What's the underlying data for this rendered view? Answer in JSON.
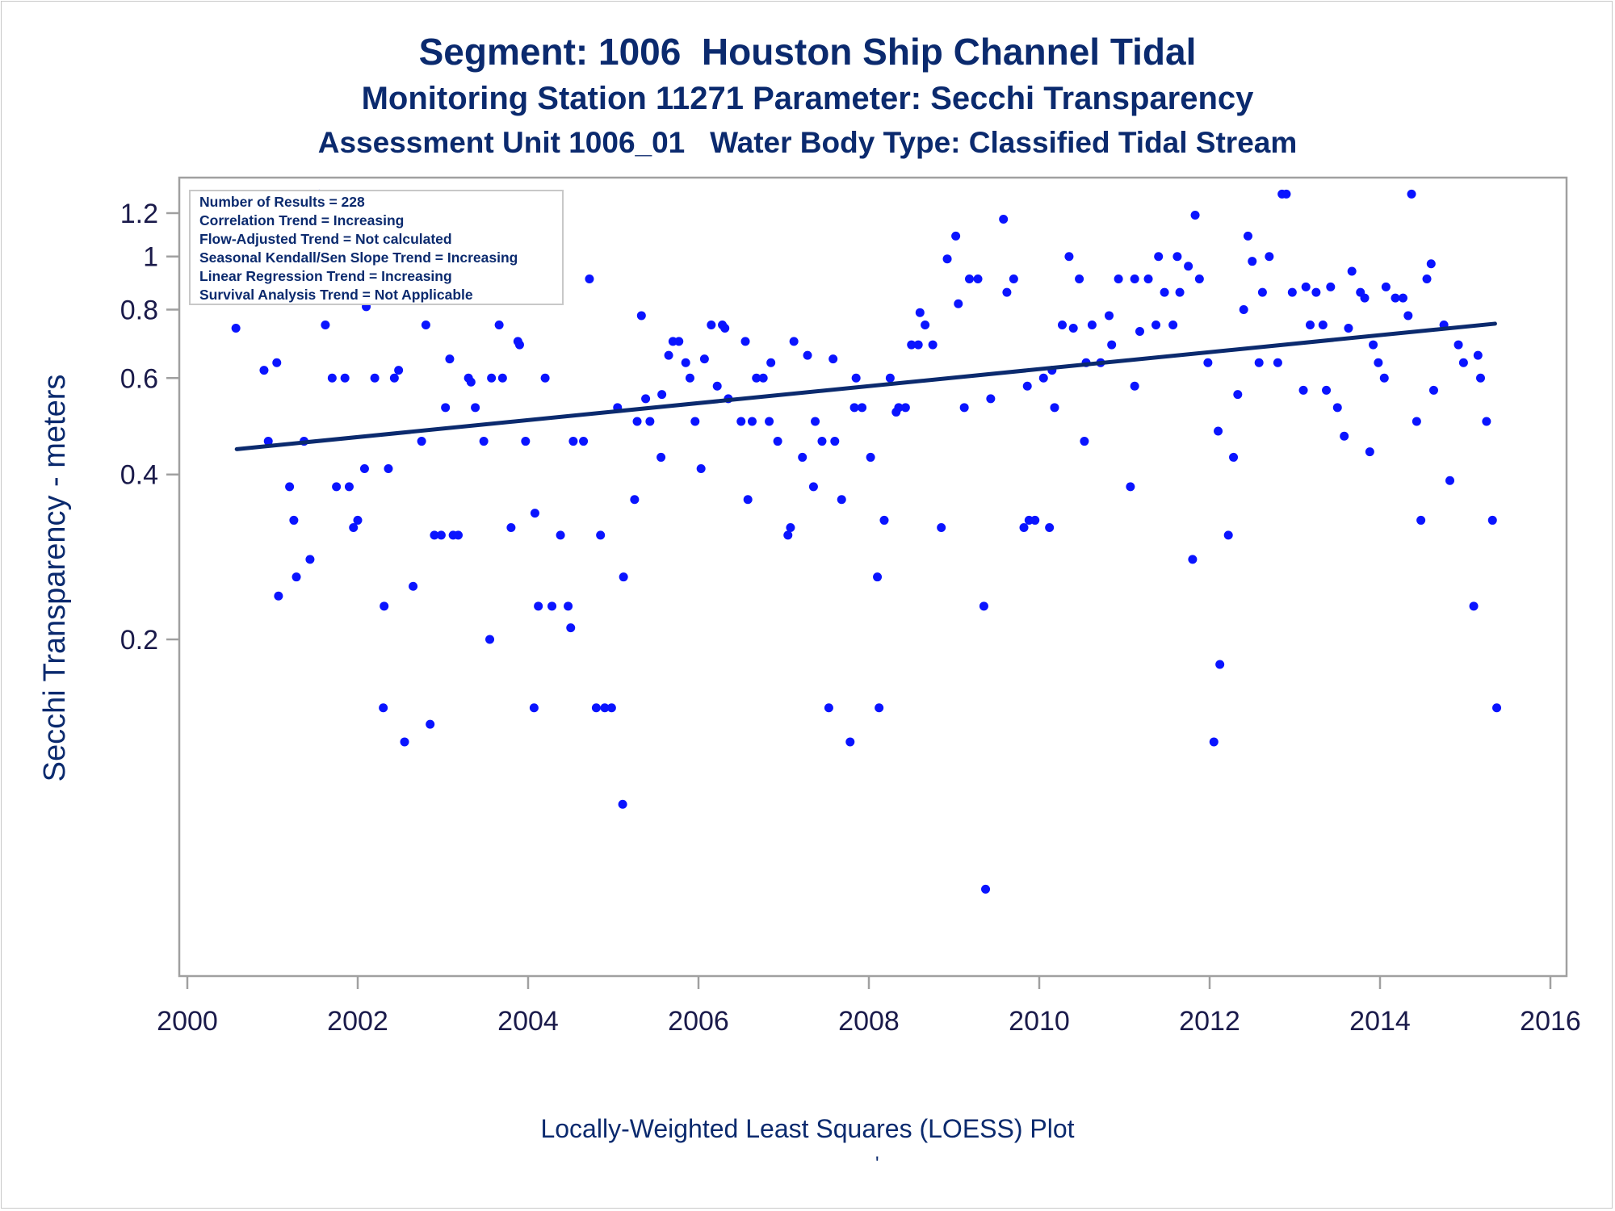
{
  "titles": {
    "line1": "Segment: 1006  Houston Ship Channel Tidal",
    "line2": "Monitoring Station 11271 Parameter: Secchi Transparency",
    "line3": "Assessment Unit 1006_01   Water Body Type: Classified Tidal Stream"
  },
  "footnote": "Locally-Weighted Least Squares (LOESS) Plot",
  "footnote_mark": "'",
  "stats_box": {
    "lines": [
      "Number of Results = 228",
      "Correlation Trend = Increasing",
      "Flow-Adjusted Trend = Not calculated",
      "Seasonal Kendall/Sen Slope Trend = Increasing",
      "Linear Regression Trend = Increasing",
      "Survival Analysis Trend = Not Applicable"
    ]
  },
  "colors": {
    "points": "#0a14ff",
    "trend_line": "#0b2a6e",
    "text": "#0b2a6e",
    "axis": "#a0a0a0"
  },
  "chart_data": {
    "type": "scatter",
    "ylabel": "Secchi Transparency - meters",
    "xlabel": "",
    "y_scale": "log",
    "xlim": [
      2000,
      2016
    ],
    "ylim": [
      0.065,
      1.33
    ],
    "x_ticks": [
      2000,
      2002,
      2004,
      2006,
      2008,
      2010,
      2012,
      2014,
      2016
    ],
    "y_ticks": [
      0.2,
      0.4,
      0.6,
      0.8,
      1,
      1.2
    ],
    "y_tick_labels": [
      "0.2",
      "0.4",
      "0.6",
      "0.8",
      "1",
      "1.2"
    ],
    "trend_line": {
      "x": [
        2000.58,
        2015.35
      ],
      "y": [
        0.445,
        0.754
      ]
    },
    "points": [
      [
        2000.57,
        0.74
      ],
      [
        2000.9,
        0.62
      ],
      [
        2000.95,
        0.46
      ],
      [
        2001.05,
        0.64
      ],
      [
        2001.07,
        0.24
      ],
      [
        2001.1,
        0.91
      ],
      [
        2001.2,
        0.38
      ],
      [
        2001.25,
        0.33
      ],
      [
        2001.28,
        0.26
      ],
      [
        2001.37,
        0.46
      ],
      [
        2001.44,
        0.28
      ],
      [
        2001.55,
        1.3
      ],
      [
        2001.57,
        1.05
      ],
      [
        2001.62,
        0.75
      ],
      [
        2001.7,
        0.6
      ],
      [
        2001.75,
        0.38
      ],
      [
        2001.85,
        0.6
      ],
      [
        2001.9,
        0.38
      ],
      [
        2001.95,
        0.32
      ],
      [
        2002.0,
        0.33
      ],
      [
        2002.08,
        0.41
      ],
      [
        2002.1,
        0.81
      ],
      [
        2002.2,
        0.6
      ],
      [
        2002.3,
        0.15
      ],
      [
        2002.31,
        0.23
      ],
      [
        2002.36,
        0.41
      ],
      [
        2002.43,
        0.6
      ],
      [
        2002.48,
        0.62
      ],
      [
        2002.55,
        0.13
      ],
      [
        2002.65,
        0.25
      ],
      [
        2002.75,
        0.46
      ],
      [
        2002.8,
        0.75
      ],
      [
        2002.85,
        0.14
      ],
      [
        2002.9,
        0.31
      ],
      [
        2002.98,
        0.31
      ],
      [
        2003.03,
        0.53
      ],
      [
        2003.08,
        0.65
      ],
      [
        2003.12,
        0.31
      ],
      [
        2003.18,
        0.31
      ],
      [
        2003.3,
        0.6
      ],
      [
        2003.33,
        0.59
      ],
      [
        2003.38,
        0.53
      ],
      [
        2003.48,
        0.46
      ],
      [
        2003.55,
        0.2
      ],
      [
        2003.57,
        0.6
      ],
      [
        2003.66,
        0.75
      ],
      [
        2003.7,
        0.6
      ],
      [
        2003.8,
        0.32
      ],
      [
        2003.88,
        0.7
      ],
      [
        2003.9,
        0.69
      ],
      [
        2003.97,
        0.46
      ],
      [
        2004.07,
        0.15
      ],
      [
        2004.08,
        0.34
      ],
      [
        2004.12,
        0.23
      ],
      [
        2004.2,
        0.6
      ],
      [
        2004.28,
        0.23
      ],
      [
        2004.38,
        0.31
      ],
      [
        2004.47,
        0.23
      ],
      [
        2004.5,
        0.21
      ],
      [
        2004.53,
        0.46
      ],
      [
        2004.65,
        0.46
      ],
      [
        2004.72,
        0.91
      ],
      [
        2004.8,
        0.15
      ],
      [
        2004.85,
        0.31
      ],
      [
        2004.9,
        0.15
      ],
      [
        2004.98,
        0.15
      ],
      [
        2005.05,
        0.53
      ],
      [
        2005.11,
        0.1
      ],
      [
        2005.12,
        0.26
      ],
      [
        2005.25,
        0.36
      ],
      [
        2005.28,
        0.5
      ],
      [
        2005.33,
        0.78
      ],
      [
        2005.38,
        0.55
      ],
      [
        2005.43,
        0.5
      ],
      [
        2005.56,
        0.43
      ],
      [
        2005.57,
        0.56
      ],
      [
        2005.65,
        0.66
      ],
      [
        2005.7,
        0.7
      ],
      [
        2005.77,
        0.7
      ],
      [
        2005.85,
        0.64
      ],
      [
        2005.9,
        0.6
      ],
      [
        2005.96,
        0.5
      ],
      [
        2006.03,
        0.41
      ],
      [
        2006.07,
        0.65
      ],
      [
        2006.15,
        0.75
      ],
      [
        2006.22,
        0.58
      ],
      [
        2006.28,
        0.75
      ],
      [
        2006.31,
        0.74
      ],
      [
        2006.35,
        0.55
      ],
      [
        2006.5,
        0.5
      ],
      [
        2006.55,
        0.7
      ],
      [
        2006.58,
        0.36
      ],
      [
        2006.63,
        0.5
      ],
      [
        2006.68,
        0.6
      ],
      [
        2006.76,
        0.6
      ],
      [
        2006.83,
        0.5
      ],
      [
        2006.85,
        0.64
      ],
      [
        2006.93,
        0.46
      ],
      [
        2007.05,
        0.31
      ],
      [
        2007.08,
        0.32
      ],
      [
        2007.12,
        0.7
      ],
      [
        2007.22,
        0.43
      ],
      [
        2007.28,
        0.66
      ],
      [
        2007.35,
        0.38
      ],
      [
        2007.37,
        0.5
      ],
      [
        2007.45,
        0.46
      ],
      [
        2007.53,
        0.15
      ],
      [
        2007.58,
        0.65
      ],
      [
        2007.6,
        0.46
      ],
      [
        2007.68,
        0.36
      ],
      [
        2007.78,
        0.13
      ],
      [
        2007.83,
        0.53
      ],
      [
        2007.85,
        0.6
      ],
      [
        2007.92,
        0.53
      ],
      [
        2008.02,
        0.43
      ],
      [
        2008.1,
        0.26
      ],
      [
        2008.12,
        0.15
      ],
      [
        2008.18,
        0.33
      ],
      [
        2008.25,
        0.6
      ],
      [
        2008.32,
        0.52
      ],
      [
        2008.35,
        0.53
      ],
      [
        2008.43,
        0.53
      ],
      [
        2008.5,
        0.69
      ],
      [
        2008.58,
        0.69
      ],
      [
        2008.6,
        0.79
      ],
      [
        2008.66,
        0.75
      ],
      [
        2008.75,
        0.69
      ],
      [
        2008.85,
        0.32
      ],
      [
        2008.92,
        0.99
      ],
      [
        2009.02,
        1.09
      ],
      [
        2009.05,
        0.82
      ],
      [
        2009.12,
        0.53
      ],
      [
        2009.18,
        0.91
      ],
      [
        2009.28,
        0.91
      ],
      [
        2009.35,
        0.23
      ],
      [
        2009.37,
        0.07
      ],
      [
        2009.43,
        0.55
      ],
      [
        2009.58,
        1.17
      ],
      [
        2009.62,
        0.86
      ],
      [
        2009.7,
        0.91
      ],
      [
        2009.82,
        0.32
      ],
      [
        2009.86,
        0.58
      ],
      [
        2009.88,
        0.33
      ],
      [
        2009.95,
        0.33
      ],
      [
        2010.05,
        0.6
      ],
      [
        2010.12,
        0.32
      ],
      [
        2010.15,
        0.62
      ],
      [
        2010.18,
        0.53
      ],
      [
        2010.27,
        0.75
      ],
      [
        2010.35,
        1.0
      ],
      [
        2010.4,
        0.74
      ],
      [
        2010.47,
        0.91
      ],
      [
        2010.53,
        0.46
      ],
      [
        2010.55,
        0.64
      ],
      [
        2010.62,
        0.75
      ],
      [
        2010.72,
        0.64
      ],
      [
        2010.82,
        0.78
      ],
      [
        2010.85,
        0.69
      ],
      [
        2010.93,
        0.91
      ],
      [
        2011.07,
        0.38
      ],
      [
        2011.12,
        0.58
      ],
      [
        2011.12,
        0.91
      ],
      [
        2011.18,
        0.73
      ],
      [
        2011.28,
        0.91
      ],
      [
        2011.37,
        0.75
      ],
      [
        2011.4,
        1.0
      ],
      [
        2011.47,
        0.86
      ],
      [
        2011.57,
        0.75
      ],
      [
        2011.62,
        1.0
      ],
      [
        2011.65,
        0.86
      ],
      [
        2011.75,
        0.96
      ],
      [
        2011.8,
        0.28
      ],
      [
        2011.83,
        1.19
      ],
      [
        2011.88,
        0.91
      ],
      [
        2011.98,
        0.64
      ],
      [
        2012.05,
        0.13
      ],
      [
        2012.1,
        0.48
      ],
      [
        2012.12,
        0.18
      ],
      [
        2012.22,
        0.31
      ],
      [
        2012.28,
        0.43
      ],
      [
        2012.33,
        0.56
      ],
      [
        2012.4,
        0.8
      ],
      [
        2012.45,
        1.09
      ],
      [
        2012.5,
        0.98
      ],
      [
        2012.58,
        0.64
      ],
      [
        2012.62,
        0.86
      ],
      [
        2012.7,
        1.0
      ],
      [
        2012.8,
        0.64
      ],
      [
        2012.85,
        1.3
      ],
      [
        2012.9,
        1.3
      ],
      [
        2012.97,
        0.86
      ],
      [
        2013.1,
        0.57
      ],
      [
        2013.13,
        0.88
      ],
      [
        2013.18,
        0.75
      ],
      [
        2013.25,
        0.86
      ],
      [
        2013.33,
        0.75
      ],
      [
        2013.37,
        0.57
      ],
      [
        2013.42,
        0.88
      ],
      [
        2013.5,
        0.53
      ],
      [
        2013.58,
        0.47
      ],
      [
        2013.63,
        0.74
      ],
      [
        2013.67,
        0.94
      ],
      [
        2013.77,
        0.86
      ],
      [
        2013.82,
        0.84
      ],
      [
        2013.88,
        0.44
      ],
      [
        2013.92,
        0.69
      ],
      [
        2013.98,
        0.64
      ],
      [
        2014.05,
        0.6
      ],
      [
        2014.07,
        0.88
      ],
      [
        2014.18,
        0.84
      ],
      [
        2014.27,
        0.84
      ],
      [
        2014.33,
        0.78
      ],
      [
        2014.37,
        1.3
      ],
      [
        2014.43,
        0.5
      ],
      [
        2014.48,
        0.33
      ],
      [
        2014.55,
        0.91
      ],
      [
        2014.6,
        0.97
      ],
      [
        2014.63,
        0.57
      ],
      [
        2014.75,
        0.75
      ],
      [
        2014.82,
        0.39
      ],
      [
        2014.92,
        0.69
      ],
      [
        2014.98,
        0.64
      ],
      [
        2015.1,
        0.23
      ],
      [
        2015.15,
        0.66
      ],
      [
        2015.18,
        0.6
      ],
      [
        2015.25,
        0.5
      ],
      [
        2015.32,
        0.33
      ],
      [
        2015.37,
        0.15
      ]
    ]
  }
}
